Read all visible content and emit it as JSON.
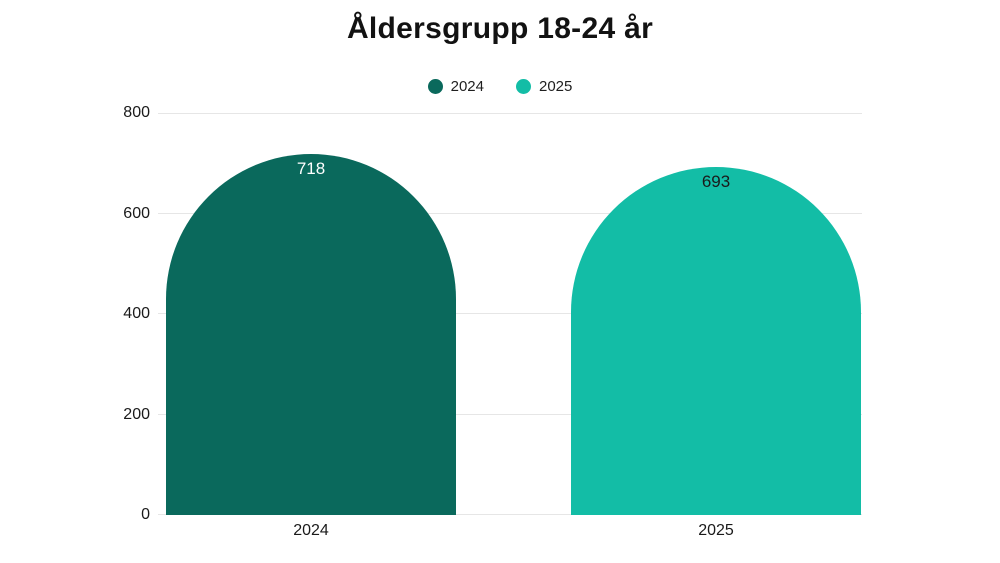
{
  "title": "Åldersgrupp 18-24 år",
  "legend": {
    "items": [
      {
        "label": "2024",
        "color": "#0a695c"
      },
      {
        "label": "2025",
        "color": "#13bda6"
      }
    ]
  },
  "chart_data": {
    "type": "bar",
    "title": "Åldersgrupp 18-24 år",
    "categories": [
      "2024",
      "2025"
    ],
    "values": [
      718,
      693
    ],
    "value_labels": [
      "718",
      "693"
    ],
    "bar_colors": [
      "#0a695c",
      "#13bda6"
    ],
    "value_label_colors": [
      "#ffffff",
      "#1a1a1a"
    ],
    "xlabel": "",
    "ylabel": "",
    "ylim": [
      0,
      800
    ],
    "yticks": [
      0,
      200,
      400,
      600,
      800
    ],
    "grid": true,
    "gridline_color": "#e6e6e6",
    "legend_position": "top",
    "bar_shape": "dome-top"
  }
}
